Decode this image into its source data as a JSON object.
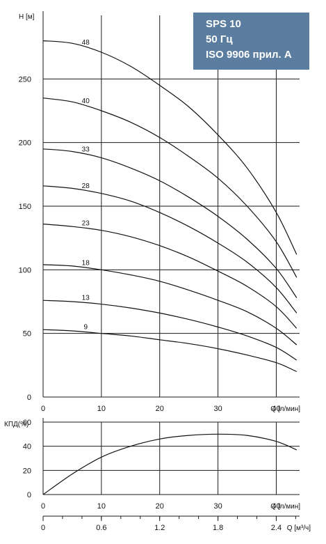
{
  "legend_box": {
    "lines": [
      "SPS 10",
      "50 Гц",
      "ISO 9906 прил. A"
    ],
    "background": "#5b7d9f",
    "text_color": "#ffffff"
  },
  "chart_data": [
    {
      "type": "line",
      "ylabel": "H [м]",
      "xlabel": "Q [л/мин]",
      "xlim": [
        0,
        44
      ],
      "ylim": [
        0,
        300
      ],
      "xticks": [
        "0",
        "10",
        "20",
        "30",
        "40"
      ],
      "yticks": [
        "0",
        "50",
        "100",
        "150",
        "200",
        "250"
      ],
      "grid": true,
      "x": [
        0,
        5,
        10,
        15,
        20,
        25,
        30,
        35,
        40,
        43.5
      ],
      "series": [
        {
          "name": "48",
          "values": [
            280,
            278,
            271,
            260,
            245,
            228,
            206,
            180,
            145,
            112
          ]
        },
        {
          "name": "40",
          "values": [
            235,
            232,
            225,
            216,
            204,
            189,
            172,
            150,
            122,
            94
          ]
        },
        {
          "name": "33",
          "values": [
            195,
            193,
            188,
            180,
            170,
            157,
            142,
            124,
            101,
            78
          ]
        },
        {
          "name": "28",
          "values": [
            166,
            164,
            160,
            154,
            145,
            134,
            121,
            106,
            86,
            66
          ]
        },
        {
          "name": "23",
          "values": [
            136,
            134,
            131,
            126,
            119,
            110,
            99,
            87,
            71,
            54
          ]
        },
        {
          "name": "18",
          "values": [
            104,
            103,
            100,
            96,
            91,
            84,
            76,
            67,
            54,
            41
          ]
        },
        {
          "name": "13",
          "values": [
            76,
            75,
            73,
            70,
            66,
            61,
            55,
            48,
            39,
            29
          ]
        },
        {
          "name": "9",
          "values": [
            53,
            52,
            50,
            48,
            45,
            42,
            38,
            33,
            27,
            20
          ]
        }
      ]
    },
    {
      "type": "line",
      "ylabel": "КПД(%)",
      "xlabel": "Q [л/мин]",
      "xlim": [
        0,
        44
      ],
      "ylim": [
        0,
        60
      ],
      "xticks": [
        "0",
        "10",
        "20",
        "30",
        "40"
      ],
      "yticks": [
        "0",
        "20",
        "40",
        "60"
      ],
      "grid": true,
      "x": [
        0,
        5,
        10,
        15,
        20,
        25,
        30,
        35,
        40,
        43.5
      ],
      "series": [
        {
          "name": "",
          "values": [
            0,
            17,
            31,
            40,
            46,
            49,
            50,
            49,
            44,
            37
          ]
        }
      ],
      "secondary_x": {
        "label": "Q [м³/ч]",
        "xlim": [
          0,
          2.64
        ],
        "ticks": [
          0,
          0.6,
          1.2,
          1.8,
          2.4
        ],
        "tick_labels": [
          "0",
          "0.6",
          "1.2",
          "1.8",
          "2.4"
        ],
        "minor_step": 0.2
      }
    }
  ]
}
